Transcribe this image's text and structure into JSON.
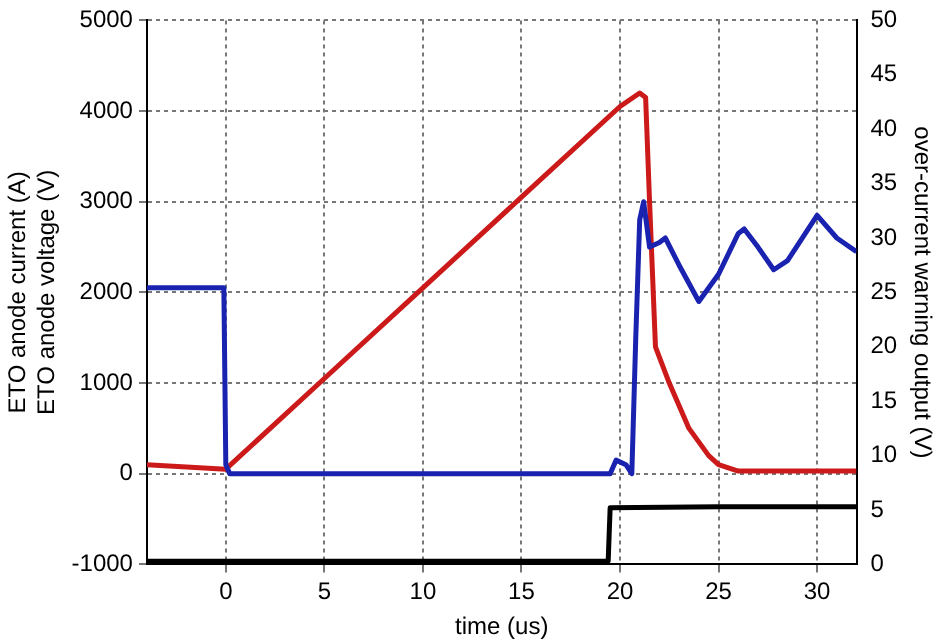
{
  "chart_data": {
    "type": "line",
    "xlabel": "time (us)",
    "ylabel": "ETO anode current (A)\nETO anode voltage (V)",
    "y2label": "over-current warning output (V)",
    "xlim": [
      -4,
      32
    ],
    "xticks": [
      0,
      5,
      10,
      15,
      20,
      25,
      30
    ],
    "ylim": [
      -1000,
      5000
    ],
    "yticks": [
      -1000,
      0,
      1000,
      2000,
      3000,
      4000,
      5000
    ],
    "y2lim": [
      0,
      50
    ],
    "y2ticks": [
      0,
      5,
      10,
      15,
      20,
      25,
      30,
      35,
      40,
      45,
      50
    ],
    "grid": true,
    "legend": false,
    "marker": "none",
    "line_style": "solid",
    "series": [
      {
        "color": "#1a22b0",
        "x": [
          -4,
          -0.1,
          0,
          0.2,
          19.5,
          19.8,
          20.3,
          20.6,
          20.8,
          21,
          21.2,
          21.5,
          22,
          22.3,
          23,
          24,
          25,
          26,
          26.3,
          27,
          27.8,
          28.5,
          30,
          31,
          32
        ],
        "values": [
          2050,
          2050,
          100,
          0,
          0,
          150,
          100,
          0,
          1500,
          2800,
          3000,
          2500,
          2550,
          2600,
          2300,
          1900,
          2200,
          2650,
          2700,
          2500,
          2250,
          2350,
          2850,
          2600,
          2450
        ]
      },
      {
        "color": "#cc1a1a",
        "x": [
          -4,
          0,
          5,
          10,
          15,
          20,
          21,
          21.3,
          21.5,
          21.8,
          22.5,
          23.5,
          24.5,
          25,
          26,
          32
        ],
        "values": [
          100,
          50,
          1050,
          2050,
          3050,
          4050,
          4200,
          4150,
          3000,
          1400,
          1000,
          500,
          200,
          100,
          30,
          30
        ]
      },
      {
        "color": "#000000",
        "axis": "y2",
        "x": [
          -4,
          19.4,
          19.5,
          25,
          32
        ],
        "values": [
          0.3,
          0.3,
          5.2,
          5.3,
          5.3
        ]
      }
    ]
  }
}
